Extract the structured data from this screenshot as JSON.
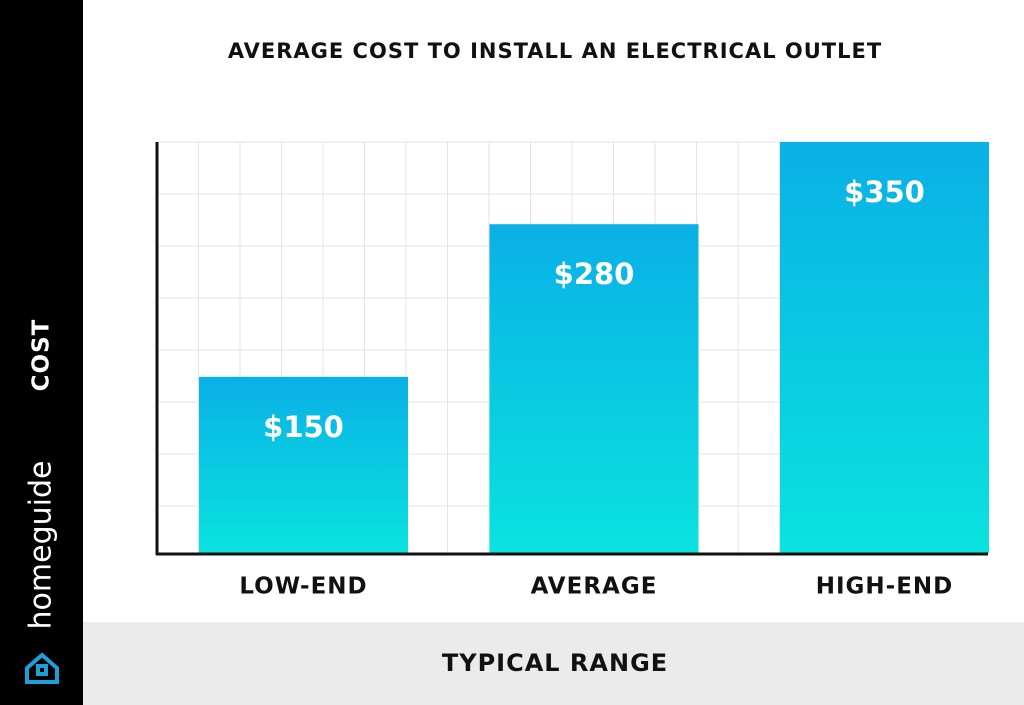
{
  "chart_data": {
    "type": "bar",
    "title": "AVERAGE COST TO INSTALL AN ELECTRICAL OUTLET",
    "x_label": "TYPICAL RANGE",
    "y_label": "COST",
    "brand": "homeguide",
    "categories": [
      "LOW-END",
      "AVERAGE",
      "HIGH-END"
    ],
    "values": [
      150,
      280,
      350
    ],
    "value_labels": [
      "$150",
      "$280",
      "$350"
    ],
    "color": "#0ab0e6",
    "gradient_to": "#0ae3df",
    "ylim": [
      0,
      350
    ],
    "grid": true
  }
}
